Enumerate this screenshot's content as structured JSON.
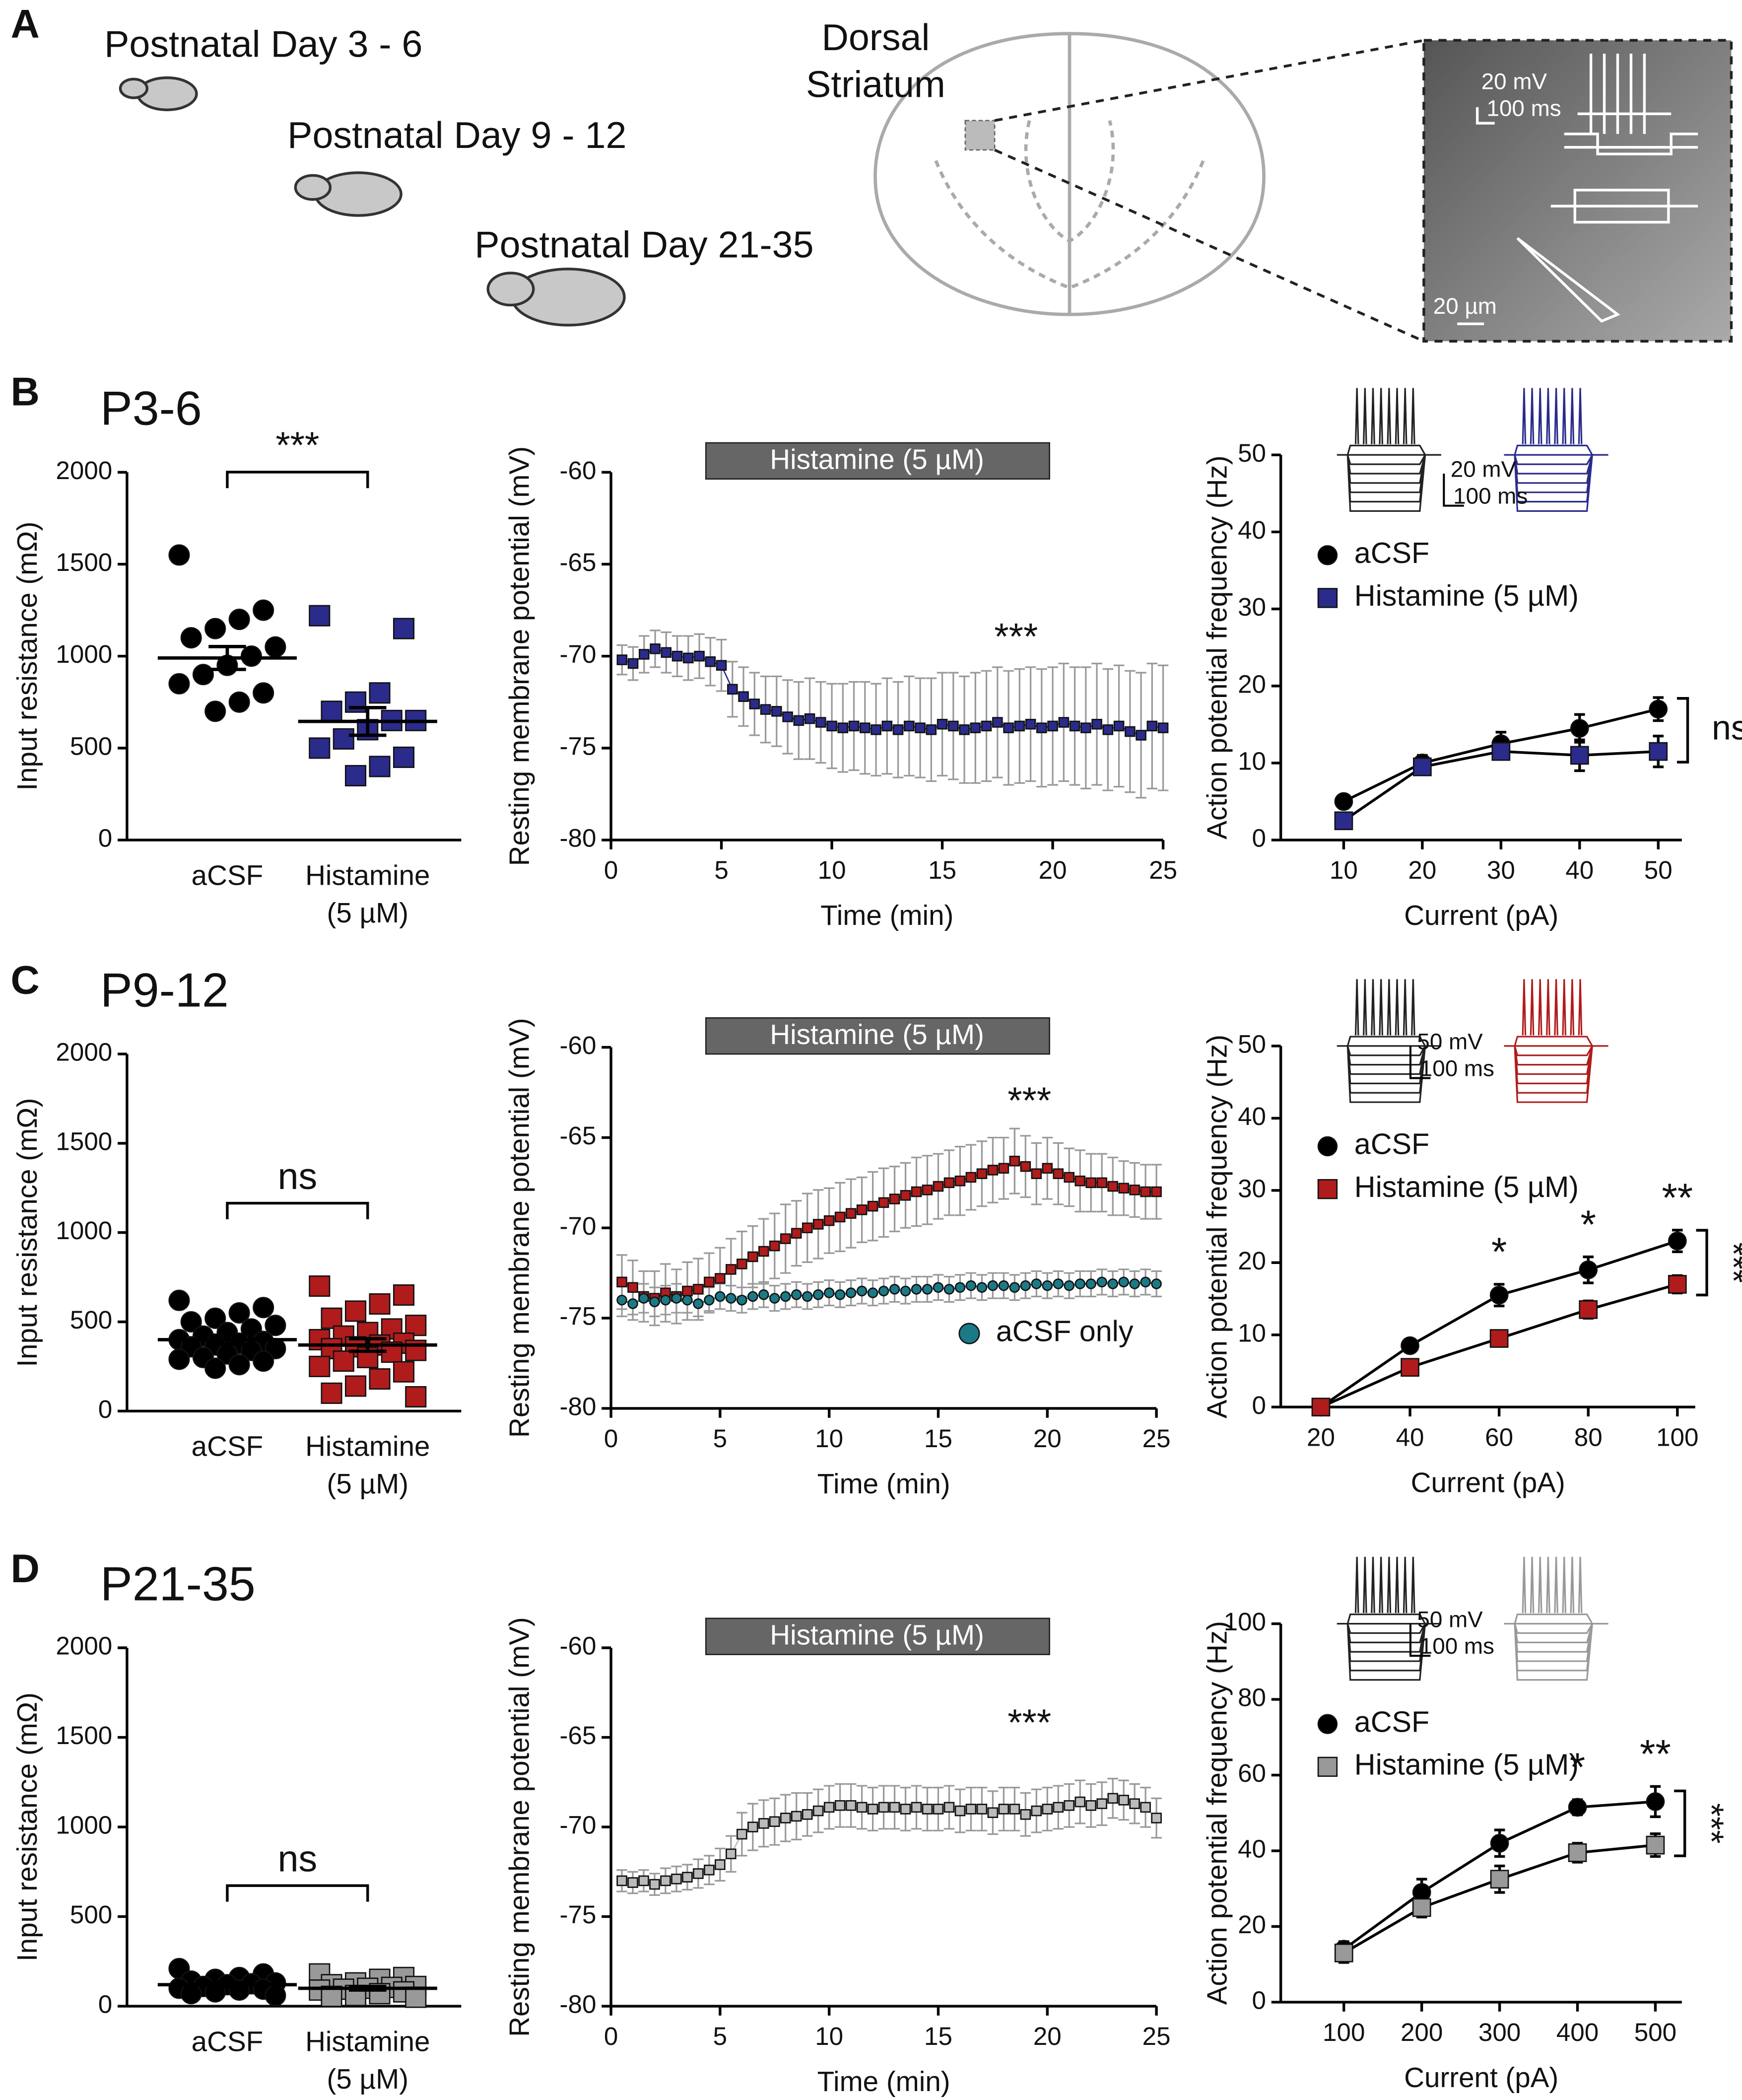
{
  "panel_labels": [
    "A",
    "B",
    "C",
    "D"
  ],
  "panel_a": {
    "groups": [
      "Postnatal Day 3 - 6",
      "Postnatal Day 9 - 12",
      "Postnatal Day 21-35"
    ],
    "region": [
      "Dorsal",
      "Striatum"
    ],
    "scale_labels": [
      "20 mV",
      "100 ms",
      "20 µm"
    ]
  },
  "chart_data": [
    {
      "type": "strip",
      "title": "P3-6",
      "ylabel": "Input resistance (mΩ)",
      "categories": [
        "aCSF",
        [
          "Histamine",
          "(5 µM)"
        ]
      ],
      "ylim": [
        0,
        2000
      ],
      "yticks": [
        0,
        500,
        1000,
        1500,
        2000
      ],
      "significance": "***",
      "series": [
        {
          "color": "#000000",
          "marker": "circle",
          "values": [
            1550,
            1250,
            1200,
            1150,
            1100,
            1050,
            1000,
            950,
            900,
            850,
            800,
            750,
            700
          ],
          "mean": 990,
          "sem": 62
        },
        {
          "color": "#2b2b8c",
          "marker": "square",
          "values": [
            1220,
            1150,
            800,
            750,
            700,
            650,
            650,
            600,
            550,
            500,
            450,
            400,
            350
          ],
          "mean": 645,
          "sem": 75
        }
      ]
    },
    {
      "type": "line",
      "ylabel": "Resting membrane potential (mV)",
      "xlabel": "Time (min)",
      "treatment": "Histamine (5 µM)",
      "significance": "***",
      "xlim": [
        0,
        25
      ],
      "xticks": [
        0,
        5,
        10,
        15,
        20,
        25
      ],
      "ylim": [
        -80,
        -60
      ],
      "yticks": [
        -80,
        -75,
        -70,
        -65,
        -60
      ],
      "x": [
        0.5,
        1,
        1.5,
        2,
        2.5,
        3,
        3.5,
        4,
        4.5,
        5,
        5.5,
        6,
        6.5,
        7,
        7.5,
        8,
        8.5,
        9,
        9.5,
        10,
        10.5,
        11,
        11.5,
        12,
        12.5,
        13,
        13.5,
        14,
        14.5,
        15,
        15.5,
        16,
        16.5,
        17,
        17.5,
        18,
        18.5,
        19,
        19.5,
        20,
        20.5,
        21,
        21.5,
        22,
        22.5,
        23,
        23.5,
        24,
        24.5,
        25
      ],
      "series": [
        {
          "color": "#2b2b8c",
          "marker": "square",
          "values": [
            -70.2,
            -70.4,
            -69.9,
            -69.6,
            -69.8,
            -70.0,
            -70.1,
            -70.0,
            -70.3,
            -70.5,
            -71.8,
            -72.2,
            -72.6,
            -72.9,
            -73.0,
            -73.3,
            -73.5,
            -73.4,
            -73.6,
            -73.8,
            -73.9,
            -73.8,
            -73.9,
            -74.0,
            -73.8,
            -74.0,
            -73.8,
            -73.9,
            -74.0,
            -73.7,
            -73.8,
            -74.0,
            -73.9,
            -73.8,
            -73.6,
            -73.9,
            -73.8,
            -73.7,
            -73.9,
            -73.8,
            -73.6,
            -73.8,
            -73.9,
            -73.7,
            -74.0,
            -73.8,
            -74.1,
            -74.3,
            -73.8,
            -73.9
          ],
          "errors": [
            0.8,
            0.9,
            1.0,
            1.0,
            1.1,
            1.1,
            1.2,
            1.2,
            1.3,
            1.4,
            1.5,
            1.6,
            1.7,
            1.8,
            1.9,
            2.0,
            2.1,
            2.2,
            2.2,
            2.3,
            2.4,
            2.4,
            2.5,
            2.5,
            2.6,
            2.6,
            2.7,
            2.7,
            2.8,
            2.8,
            2.9,
            2.9,
            3.0,
            3.0,
            3.0,
            3.1,
            3.1,
            3.1,
            3.2,
            3.2,
            3.2,
            3.2,
            3.3,
            3.3,
            3.3,
            3.3,
            3.3,
            3.4,
            3.4,
            3.4
          ]
        }
      ]
    },
    {
      "type": "line",
      "ylabel": "Action potential frequency (Hz)",
      "xlabel": "Current (pA)",
      "scale_labels": [
        "20 mV",
        "100 ms"
      ],
      "comparison": "ns",
      "xlim": [
        2,
        53
      ],
      "xticks": [
        10,
        20,
        30,
        40,
        50
      ],
      "ylim": [
        0,
        50
      ],
      "yticks": [
        0,
        10,
        20,
        30,
        40,
        50
      ],
      "x": [
        10,
        20,
        30,
        40,
        50
      ],
      "series": [
        {
          "name": "aCSF",
          "color": "#000000",
          "marker": "circle",
          "values": [
            5,
            10,
            12.5,
            14.5,
            17
          ],
          "errors": [
            0.5,
            1,
            1.5,
            1.8,
            1.5
          ]
        },
        {
          "name": "Histamine (5 µM)",
          "color": "#2b2b8c",
          "marker": "square",
          "values": [
            2.5,
            9.5,
            11.5,
            11,
            11.5
          ],
          "errors": [
            0.5,
            1,
            1,
            2,
            2
          ]
        }
      ]
    },
    {
      "type": "strip",
      "title": "P9-12",
      "ylabel": "Input resistance (mΩ)",
      "categories": [
        "aCSF",
        [
          "Histamine",
          "(5 µM)"
        ]
      ],
      "ylim": [
        0,
        2000
      ],
      "yticks": [
        0,
        500,
        1000,
        1500,
        2000
      ],
      "significance": "ns",
      "series": [
        {
          "color": "#000000",
          "marker": "circle",
          "values": [
            620,
            580,
            550,
            520,
            500,
            480,
            460,
            440,
            420,
            400,
            390,
            380,
            370,
            360,
            350,
            340,
            320,
            300,
            290,
            280,
            260,
            240
          ],
          "mean": 400,
          "sem": 25
        },
        {
          "color": "#b01c1c",
          "marker": "square",
          "values": [
            700,
            650,
            600,
            560,
            520,
            480,
            460,
            440,
            420,
            400,
            380,
            370,
            360,
            350,
            340,
            330,
            300,
            280,
            250,
            220,
            180,
            140,
            100,
            80
          ],
          "mean": 370,
          "sem": 35
        }
      ]
    },
    {
      "type": "line",
      "ylabel": "Resting membrane potential (mV)",
      "xlabel": "Time (min)",
      "treatment": "Histamine (5 µM)",
      "significance": "***",
      "xlim": [
        0,
        25
      ],
      "xticks": [
        0,
        5,
        10,
        15,
        20,
        25
      ],
      "ylim": [
        -80,
        -60
      ],
      "yticks": [
        -80,
        -75,
        -70,
        -65,
        -60
      ],
      "x": [
        0.5,
        1,
        1.5,
        2,
        2.5,
        3,
        3.5,
        4,
        4.5,
        5,
        5.5,
        6,
        6.5,
        7,
        7.5,
        8,
        8.5,
        9,
        9.5,
        10,
        10.5,
        11,
        11.5,
        12,
        12.5,
        13,
        13.5,
        14,
        14.5,
        15,
        15.5,
        16,
        16.5,
        17,
        17.5,
        18,
        18.5,
        19,
        19.5,
        20,
        20.5,
        21,
        21.5,
        22,
        22.5,
        23,
        23.5,
        24,
        24.5,
        25
      ],
      "series": [
        {
          "color": "#b01c1c",
          "marker": "square",
          "values": [
            -73.0,
            -73.3,
            -73.8,
            -73.9,
            -73.6,
            -73.8,
            -73.5,
            -73.4,
            -73.0,
            -72.8,
            -72.3,
            -72.0,
            -71.6,
            -71.3,
            -71.0,
            -70.6,
            -70.3,
            -70.0,
            -69.8,
            -69.6,
            -69.4,
            -69.2,
            -69.0,
            -68.8,
            -68.6,
            -68.4,
            -68.2,
            -68.0,
            -67.9,
            -67.7,
            -67.5,
            -67.4,
            -67.2,
            -67.0,
            -66.8,
            -66.7,
            -66.3,
            -66.6,
            -67.0,
            -66.7,
            -67.0,
            -67.2,
            -67.4,
            -67.5,
            -67.5,
            -67.7,
            -67.8,
            -67.9,
            -68.0,
            -68.0
          ],
          "errors": [
            1.5,
            1.5,
            1.4,
            1.5,
            1.6,
            1.5,
            1.6,
            1.7,
            1.6,
            1.7,
            1.7,
            1.8,
            1.7,
            1.8,
            1.8,
            1.9,
            1.8,
            1.9,
            1.9,
            1.8,
            1.9,
            1.9,
            1.8,
            1.9,
            1.9,
            1.8,
            1.8,
            1.9,
            1.9,
            1.8,
            1.8,
            1.9,
            1.8,
            1.8,
            1.8,
            1.7,
            1.8,
            1.7,
            1.7,
            1.7,
            1.7,
            1.6,
            1.7,
            1.6,
            1.6,
            1.6,
            1.5,
            1.5,
            1.5,
            1.5
          ]
        },
        {
          "name": "aCSF only",
          "color": "#1b7a86",
          "marker": "circle",
          "values": [
            -74.0,
            -74.2,
            -73.9,
            -74.1,
            -74.0,
            -73.9,
            -74.0,
            -74.2,
            -74.0,
            -73.8,
            -73.9,
            -74.0,
            -73.8,
            -73.7,
            -73.9,
            -73.8,
            -73.7,
            -73.8,
            -73.7,
            -73.6,
            -73.7,
            -73.6,
            -73.5,
            -73.6,
            -73.5,
            -73.4,
            -73.5,
            -73.4,
            -73.4,
            -73.3,
            -73.4,
            -73.3,
            -73.2,
            -73.3,
            -73.2,
            -73.2,
            -73.3,
            -73.2,
            -73.1,
            -73.2,
            -73.1,
            -73.2,
            -73.1,
            -73.1,
            -73.0,
            -73.1,
            -73.0,
            -73.1,
            -73.0,
            -73.1
          ],
          "errors": [
            0.9,
            0.9,
            0.8,
            0.8,
            0.8,
            0.8,
            0.7,
            0.7,
            0.7,
            0.7,
            0.7,
            0.7,
            0.7,
            0.7,
            0.7,
            0.7,
            0.7,
            0.7,
            0.7,
            0.7,
            0.7,
            0.7,
            0.7,
            0.7,
            0.7,
            0.7,
            0.7,
            0.7,
            0.7,
            0.7,
            0.7,
            0.7,
            0.7,
            0.7,
            0.7,
            0.7,
            0.7,
            0.7,
            0.7,
            0.7,
            0.7,
            0.7,
            0.7,
            0.7,
            0.7,
            0.7,
            0.7,
            0.7,
            0.7,
            0.7
          ]
        }
      ]
    },
    {
      "type": "line",
      "ylabel": "Action potential frequency (Hz)",
      "xlabel": "Current (pA)",
      "scale_labels": [
        "50 mV",
        "100 ms"
      ],
      "comparison": "***",
      "xlim": [
        11,
        104
      ],
      "xticks": [
        20,
        40,
        60,
        80,
        100
      ],
      "ylim": [
        0,
        50
      ],
      "yticks": [
        0,
        10,
        20,
        30,
        40,
        50
      ],
      "x": [
        20,
        40,
        60,
        80,
        100
      ],
      "annotations": [
        {
          "text": "*",
          "x": 60
        },
        {
          "text": "*",
          "x": 80
        },
        {
          "text": "**",
          "x": 100
        }
      ],
      "series": [
        {
          "name": "aCSF",
          "color": "#000000",
          "marker": "circle",
          "values": [
            0,
            8.5,
            15.5,
            19,
            23
          ],
          "errors": [
            0.3,
            0.5,
            1.5,
            1.8,
            1.5
          ]
        },
        {
          "name": "Histamine (5 µM)",
          "color": "#b01c1c",
          "marker": "square",
          "values": [
            0,
            5.5,
            9.5,
            13.5,
            17
          ],
          "errors": [
            0.3,
            0.5,
            1,
            1.2,
            1.2
          ]
        }
      ]
    },
    {
      "type": "strip",
      "title": "P21-35",
      "ylabel": "Input resistance (mΩ)",
      "categories": [
        "aCSF",
        [
          "Histamine",
          "(5 µM)"
        ]
      ],
      "ylim": [
        0,
        2000
      ],
      "yticks": [
        0,
        500,
        1000,
        1500,
        2000
      ],
      "significance": "ns",
      "series": [
        {
          "color": "#000000",
          "marker": "circle",
          "values": [
            210,
            180,
            160,
            150,
            140,
            130,
            125,
            120,
            110,
            100,
            95,
            90,
            80,
            70,
            60
          ],
          "mean": 120,
          "sem": 12
        },
        {
          "color": "#999999",
          "marker": "square",
          "values": [
            180,
            160,
            150,
            130,
            120,
            110,
            105,
            100,
            95,
            90,
            80,
            70,
            60,
            55,
            50
          ],
          "mean": 100,
          "sem": 10
        }
      ]
    },
    {
      "type": "line",
      "ylabel": "Resting membrane potential (mV)",
      "xlabel": "Time (min)",
      "treatment": "Histamine (5 µM)",
      "significance": "***",
      "xlim": [
        0,
        25
      ],
      "xticks": [
        0,
        5,
        10,
        15,
        20,
        25
      ],
      "ylim": [
        -80,
        -60
      ],
      "yticks": [
        -80,
        -75,
        -70,
        -65,
        -60
      ],
      "x": [
        0.5,
        1,
        1.5,
        2,
        2.5,
        3,
        3.5,
        4,
        4.5,
        5,
        5.5,
        6,
        6.5,
        7,
        7.5,
        8,
        8.5,
        9,
        9.5,
        10,
        10.5,
        11,
        11.5,
        12,
        12.5,
        13,
        13.5,
        14,
        14.5,
        15,
        15.5,
        16,
        16.5,
        17,
        17.5,
        18,
        18.5,
        19,
        19.5,
        20,
        20.5,
        21,
        21.5,
        22,
        22.5,
        23,
        23.5,
        24,
        24.5,
        25
      ],
      "series": [
        {
          "color": "#bbbbbb",
          "marker": "square",
          "values": [
            -73.0,
            -73.1,
            -73.0,
            -73.2,
            -73.0,
            -72.9,
            -72.8,
            -72.6,
            -72.4,
            -72.1,
            -71.5,
            -70.4,
            -70.0,
            -69.8,
            -69.7,
            -69.5,
            -69.4,
            -69.3,
            -69.1,
            -68.9,
            -68.8,
            -68.8,
            -68.9,
            -69.0,
            -68.9,
            -68.9,
            -69.0,
            -68.9,
            -69.0,
            -69.0,
            -68.9,
            -69.1,
            -69.0,
            -69.0,
            -69.2,
            -69.0,
            -69.0,
            -69.3,
            -69.1,
            -69.0,
            -68.9,
            -68.8,
            -68.6,
            -68.8,
            -68.7,
            -68.4,
            -68.5,
            -68.7,
            -68.9,
            -69.5
          ],
          "errors": [
            0.6,
            0.6,
            0.6,
            0.6,
            0.7,
            0.7,
            0.7,
            0.8,
            0.8,
            0.9,
            1.0,
            1.2,
            1.3,
            1.3,
            1.3,
            1.3,
            1.3,
            1.2,
            1.2,
            1.2,
            1.2,
            1.2,
            1.2,
            1.2,
            1.2,
            1.2,
            1.2,
            1.2,
            1.2,
            1.2,
            1.2,
            1.2,
            1.2,
            1.2,
            1.2,
            1.2,
            1.2,
            1.2,
            1.2,
            1.2,
            1.2,
            1.2,
            1.2,
            1.2,
            1.2,
            1.1,
            1.1,
            1.1,
            1.1,
            1.1
          ]
        }
      ]
    },
    {
      "type": "line",
      "ylabel": "Action potential frequency (Hz)",
      "xlabel": "Current (pA)",
      "scale_labels": [
        "50 mV",
        "100 ms"
      ],
      "comparison": "***",
      "xlim": [
        19,
        534
      ],
      "xticks": [
        100,
        200,
        300,
        400,
        500
      ],
      "ylim": [
        0,
        100
      ],
      "yticks": [
        0,
        20,
        40,
        60,
        80,
        100
      ],
      "x": [
        100,
        200,
        300,
        400,
        500
      ],
      "annotations": [
        {
          "text": "*",
          "x": 400
        },
        {
          "text": "**",
          "x": 500
        }
      ],
      "series": [
        {
          "name": "aCSF",
          "color": "#000000",
          "marker": "circle",
          "values": [
            14,
            29,
            42,
            51.5,
            53
          ],
          "errors": [
            2,
            3.5,
            3.5,
            2,
            4
          ]
        },
        {
          "name": "Histamine (5 µM)",
          "color": "#999999",
          "marker": "square",
          "values": [
            13,
            25,
            32.5,
            39.5,
            41.5
          ],
          "errors": [
            2.5,
            2.5,
            3.5,
            2.5,
            3
          ]
        }
      ]
    }
  ]
}
